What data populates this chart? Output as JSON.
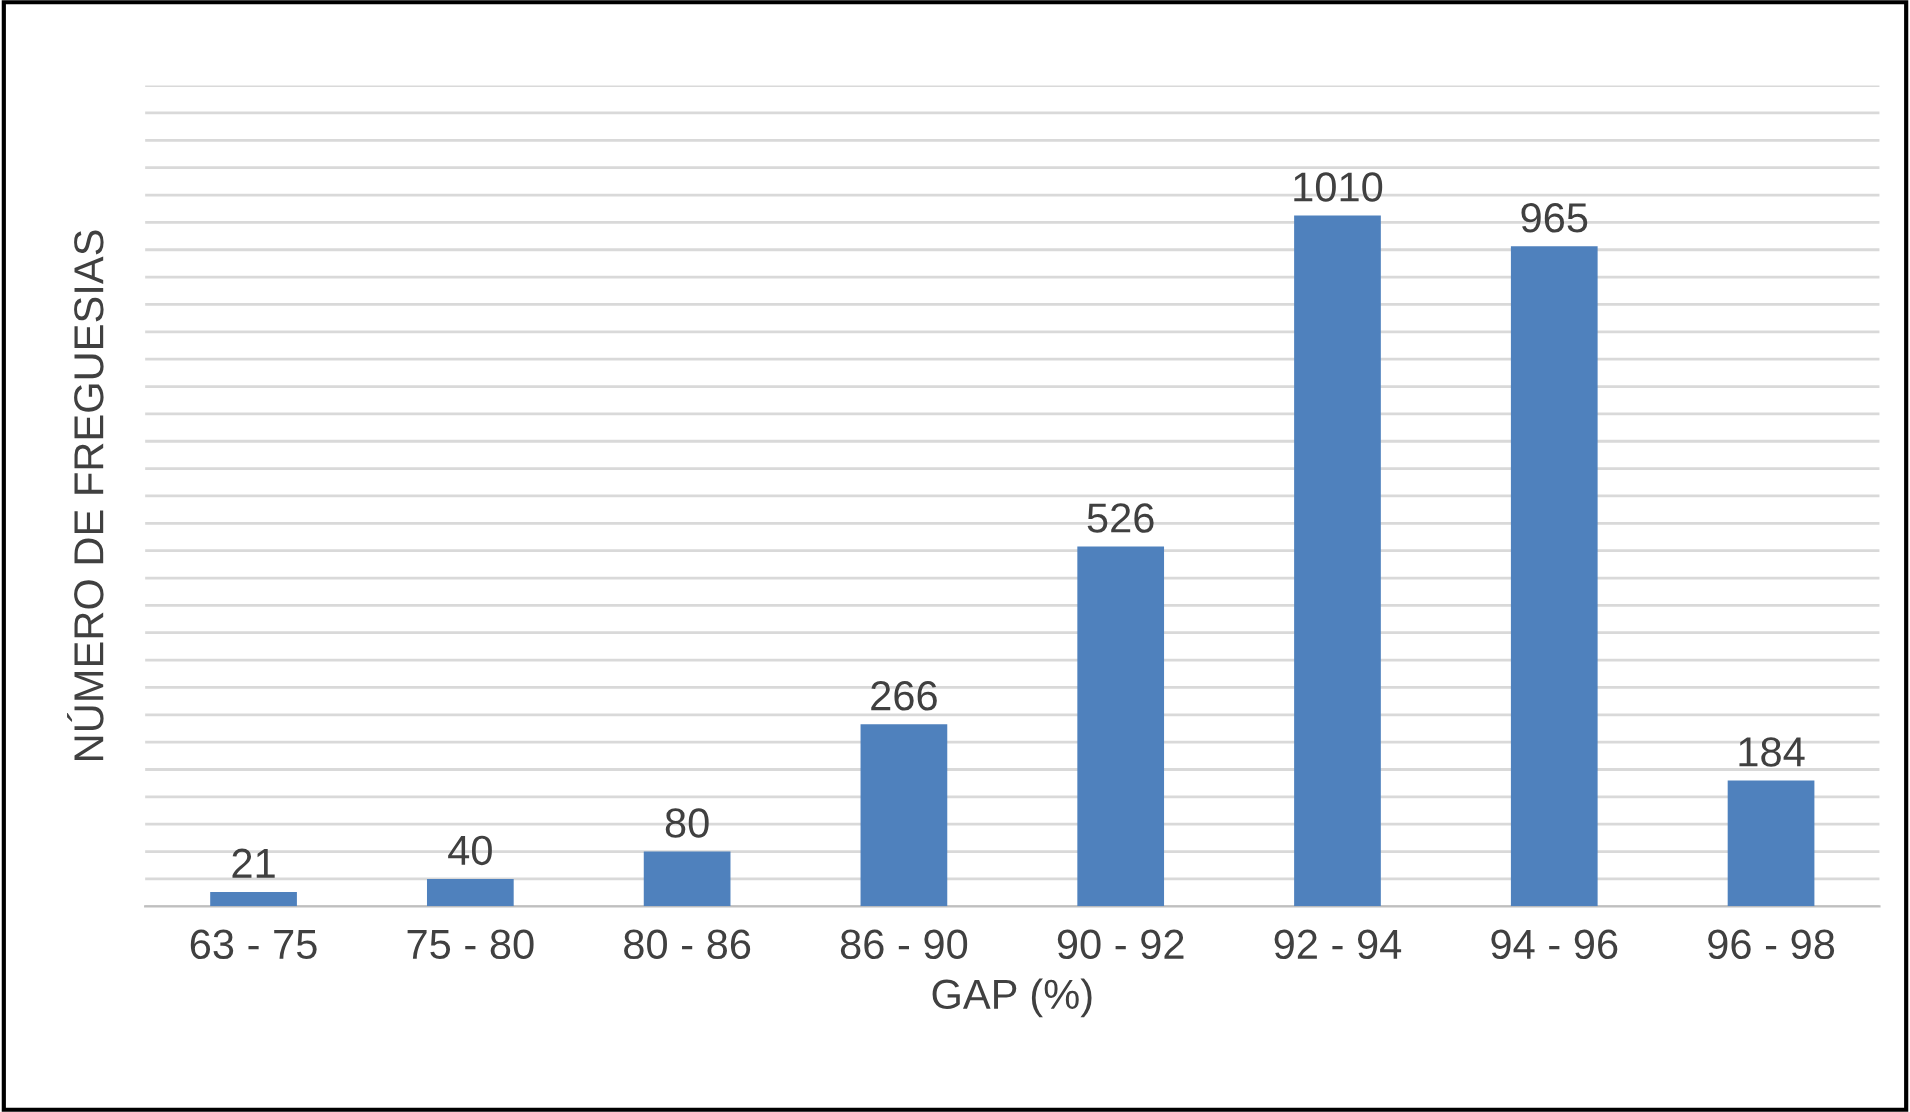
{
  "chart_data": {
    "type": "bar",
    "xlabel": "GAP (%)",
    "ylabel": "NÚMERO DE FREGUESIAS",
    "categories": [
      "63 - 75",
      "75 - 80",
      "80 - 86",
      "86 - 90",
      "90 - 92",
      "92 - 94",
      "94 - 96",
      "96 - 98"
    ],
    "values": [
      21,
      40,
      80,
      266,
      526,
      1010,
      965,
      184
    ],
    "color": "#4f81bd",
    "ylim": [
      0,
      1200
    ],
    "yticks": [
      {
        "value": 0,
        "label": null
      },
      {
        "value": 40,
        "label": null
      },
      {
        "value": 80,
        "label": null
      },
      {
        "value": 120,
        "label": null
      },
      {
        "value": 160,
        "label": null
      },
      {
        "value": 200,
        "label": null
      },
      {
        "value": 240,
        "label": null
      },
      {
        "value": 280,
        "label": null
      },
      {
        "value": 320,
        "label": null
      },
      {
        "value": 360,
        "label": null
      },
      {
        "value": 400,
        "label": null
      },
      {
        "value": 440,
        "label": null
      },
      {
        "value": 480,
        "label": null
      },
      {
        "value": 520,
        "label": null
      },
      {
        "value": 560,
        "label": null
      },
      {
        "value": 600,
        "label": null
      },
      {
        "value": 640,
        "label": null
      },
      {
        "value": 680,
        "label": null
      },
      {
        "value": 720,
        "label": null
      },
      {
        "value": 760,
        "label": null
      },
      {
        "value": 800,
        "label": null
      },
      {
        "value": 840,
        "label": null
      },
      {
        "value": 880,
        "label": null
      },
      {
        "value": 920,
        "label": null
      },
      {
        "value": 960,
        "label": null
      },
      {
        "value": 1000,
        "label": null
      },
      {
        "value": 1040,
        "label": null
      },
      {
        "value": 1080,
        "label": null
      },
      {
        "value": 1120,
        "label": null
      },
      {
        "value": 1160,
        "label": null
      },
      {
        "value": 1200,
        "label": null
      }
    ],
    "grid": "y",
    "tick_labels": "x",
    "data_labels": true
  }
}
